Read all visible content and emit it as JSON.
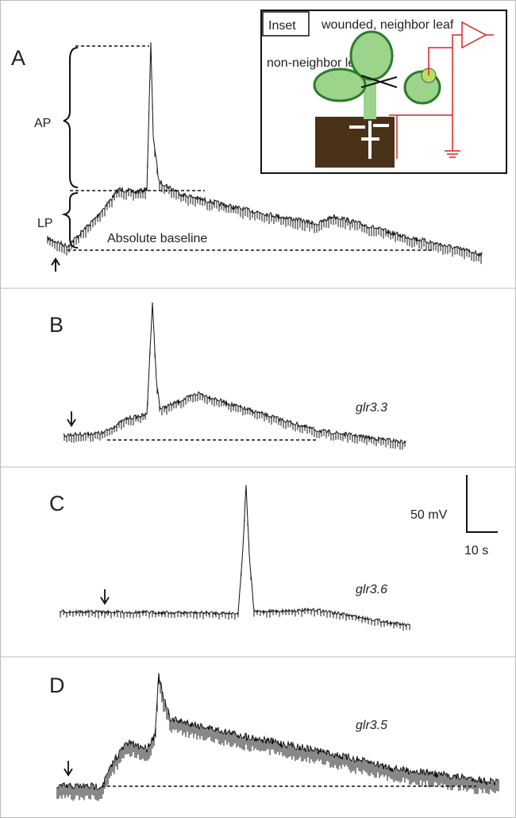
{
  "panels": [
    {
      "letter": "A",
      "labels": {
        "ap": "AP",
        "lp": "LP",
        "baseline": "Absolute baseline"
      },
      "inset": {
        "title": "Inset",
        "wounded": "wounded, neighbor leaf",
        "non_neighbor": "non-neighbor leaf"
      }
    },
    {
      "letter": "B",
      "genotype": "glr3.3"
    },
    {
      "letter": "C",
      "genotype": "glr3.6",
      "scale": {
        "voltage": "50 mV",
        "time": "10 s"
      }
    },
    {
      "letter": "D",
      "genotype": "glr3.5"
    }
  ]
}
